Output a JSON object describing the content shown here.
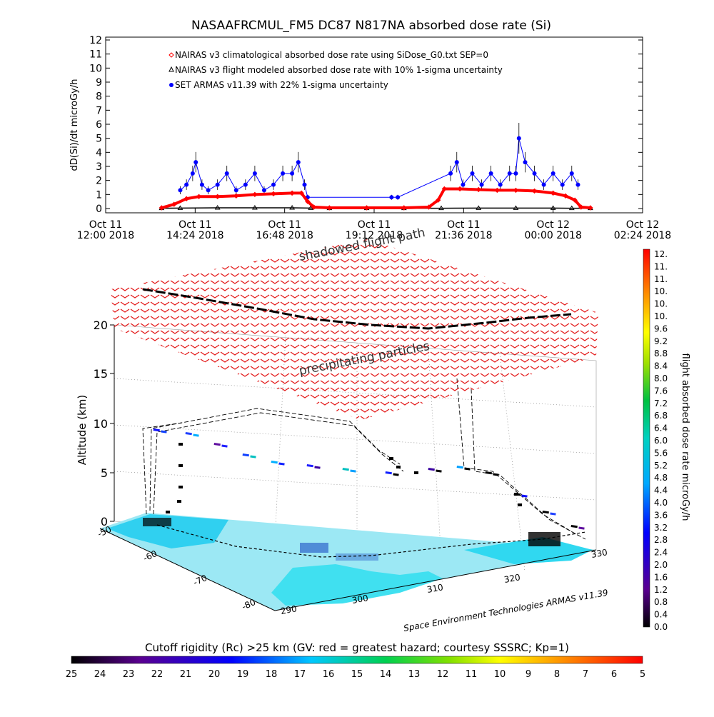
{
  "chart_data": [
    {
      "type": "line",
      "title": "NASAAFRCMUL_FM5 DC87 N817NA absorbed dose rate (Si)",
      "ylabel": "dD(Si)/dt microGy/h",
      "ylim": [
        0,
        12
      ],
      "yticks": [
        "0",
        "1",
        "2",
        "3",
        "4",
        "5",
        "6",
        "7",
        "8",
        "9",
        "10",
        "11",
        "12"
      ],
      "xlim": [
        "2018-10-11 12:00",
        "2018-10-12 02:24"
      ],
      "xticks": [
        {
          "line1": "Oct 11",
          "line2": "12:00 2018"
        },
        {
          "line1": "Oct 11",
          "line2": "14:24 2018"
        },
        {
          "line1": "Oct 11",
          "line2": "16:48 2018"
        },
        {
          "line1": "Oct 11",
          "line2": "19:12 2018"
        },
        {
          "line1": "Oct 11",
          "line2": "21:36 2018"
        },
        {
          "line1": "Oct 12",
          "line2": "00:00 2018"
        },
        {
          "line1": "Oct 12",
          "line2": "02:24 2018"
        }
      ],
      "legend_position": "top-left",
      "series": [
        {
          "name": "NAIRAS v3 climatological absorbed dose rate using SiDose_G0.txt SEP=0",
          "color": "#ff0000",
          "marker": "diamond",
          "x": [
            "2018-10-11 13:30",
            "2018-10-11 13:50",
            "2018-10-11 14:10",
            "2018-10-11 14:30",
            "2018-10-11 15:00",
            "2018-10-11 15:30",
            "2018-10-11 16:00",
            "2018-10-11 16:30",
            "2018-10-11 17:00",
            "2018-10-11 17:15",
            "2018-10-11 17:25",
            "2018-10-11 17:35",
            "2018-10-11 18:00",
            "2018-10-11 19:00",
            "2018-10-11 20:00",
            "2018-10-11 20:40",
            "2018-10-11 20:55",
            "2018-10-11 21:05",
            "2018-10-11 21:30",
            "2018-10-11 22:00",
            "2018-10-11 22:30",
            "2018-10-11 23:00",
            "2018-10-11 23:30",
            "2018-10-12 00:00",
            "2018-10-12 00:20",
            "2018-10-12 00:35",
            "2018-10-12 00:45",
            "2018-10-12 01:00"
          ],
          "values": [
            0.05,
            0.3,
            0.7,
            0.85,
            0.85,
            0.9,
            1.0,
            1.05,
            1.1,
            1.1,
            0.5,
            0.1,
            0.05,
            0.05,
            0.05,
            0.1,
            0.6,
            1.4,
            1.4,
            1.35,
            1.3,
            1.3,
            1.25,
            1.1,
            0.9,
            0.6,
            0.1,
            0.05
          ]
        },
        {
          "name": "NAIRAS v3 flight modeled absorbed dose rate with 10% 1-sigma uncertainty",
          "color": "#000000",
          "marker": "triangle",
          "x": [
            "2018-10-11 13:30",
            "2018-10-11 14:00",
            "2018-10-11 15:00",
            "2018-10-11 16:00",
            "2018-10-11 17:00",
            "2018-10-11 17:30",
            "2018-10-11 18:00",
            "2018-10-11 19:00",
            "2018-10-11 20:00",
            "2018-10-11 21:00",
            "2018-10-11 22:00",
            "2018-10-11 23:00",
            "2018-10-12 00:00",
            "2018-10-12 00:30",
            "2018-10-12 01:00"
          ],
          "values": [
            0.02,
            0.03,
            0.05,
            0.05,
            0.05,
            0.03,
            0.02,
            0.02,
            0.02,
            0.02,
            0.03,
            0.03,
            0.03,
            0.02,
            0.02
          ]
        },
        {
          "name": "SET ARMAS v11.39 with 22% 1-sigma uncertainty",
          "color": "#0000ff",
          "marker": "filled-circle",
          "x": [
            "2018-10-11 14:00",
            "2018-10-11 14:10",
            "2018-10-11 14:20",
            "2018-10-11 14:25",
            "2018-10-11 14:35",
            "2018-10-11 14:45",
            "2018-10-11 15:00",
            "2018-10-11 15:15",
            "2018-10-11 15:30",
            "2018-10-11 15:45",
            "2018-10-11 16:00",
            "2018-10-11 16:15",
            "2018-10-11 16:30",
            "2018-10-11 16:45",
            "2018-10-11 17:00",
            "2018-10-11 17:10",
            "2018-10-11 17:20",
            "2018-10-11 17:25",
            "2018-10-11 19:40",
            "2018-10-11 19:50",
            "2018-10-11 21:15",
            "2018-10-11 21:25",
            "2018-10-11 21:35",
            "2018-10-11 21:50",
            "2018-10-11 22:05",
            "2018-10-11 22:20",
            "2018-10-11 22:35",
            "2018-10-11 22:50",
            "2018-10-11 23:00",
            "2018-10-11 23:05",
            "2018-10-11 23:15",
            "2018-10-11 23:30",
            "2018-10-11 23:45",
            "2018-10-12 00:00",
            "2018-10-12 00:15",
            "2018-10-12 00:30",
            "2018-10-12 00:40"
          ],
          "values": [
            1.3,
            1.7,
            2.5,
            3.3,
            1.7,
            1.3,
            1.7,
            2.5,
            1.3,
            1.7,
            2.5,
            1.3,
            1.7,
            2.5,
            2.5,
            3.3,
            1.7,
            0.8,
            0.8,
            0.8,
            2.5,
            3.3,
            1.7,
            2.5,
            1.7,
            2.5,
            1.7,
            2.5,
            2.5,
            5.0,
            3.3,
            2.5,
            1.7,
            2.5,
            1.7,
            2.5,
            1.7
          ]
        }
      ]
    },
    {
      "type": "scatter",
      "subtype": "3d-flight-track",
      "zlabel": "Altitude (km)",
      "zticks": [
        "0",
        "5",
        "10",
        "15",
        "20"
      ],
      "xticks": [
        "290",
        "300",
        "310",
        "320",
        "330"
      ],
      "yticks": [
        "-50",
        "-60",
        "-70",
        "-80"
      ],
      "annotations": [
        "shadowed flight path",
        "precipitating particles"
      ],
      "credit": "Space Environment Technologies ARMAS v11.39",
      "colorbar": {
        "title": "flight absorbed dose rate microGy/h",
        "position": "right",
        "labels": [
          "12.",
          "11.",
          "11.",
          "10.",
          "10.",
          "10.",
          "9.6",
          "9.2",
          "8.8",
          "8.4",
          "8.0",
          "7.6",
          "7.2",
          "6.8",
          "6.4",
          "6.0",
          "5.6",
          "5.2",
          "4.8",
          "4.4",
          "4.0",
          "3.6",
          "3.2",
          "2.8",
          "2.4",
          "2.0",
          "1.6",
          "1.2",
          "0.8",
          "0.4",
          "0.0"
        ]
      }
    },
    {
      "type": "heatmap",
      "subtype": "colorbar",
      "title": "Cutoff rigidity (Rc) >25 km (GV: red = greatest hazard; courtesy SSSRC; Kp=1)",
      "labels": [
        "25",
        "24",
        "23",
        "22",
        "21",
        "20",
        "19",
        "18",
        "17",
        "16",
        "15",
        "14",
        "13",
        "12",
        "11",
        "10",
        "9",
        "8",
        "7",
        "6",
        "5"
      ],
      "position": "bottom"
    }
  ]
}
